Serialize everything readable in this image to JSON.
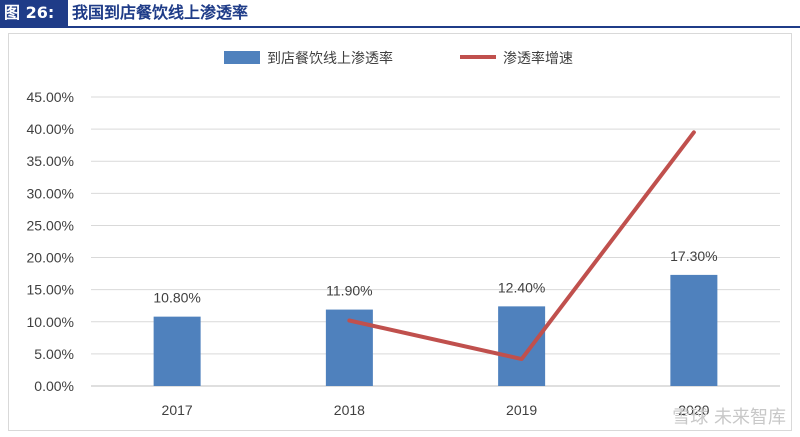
{
  "header": {
    "figure_label": "图 26:",
    "title": "我国到店餐饮线上渗透率"
  },
  "watermark": "雪球  未来智库",
  "colors": {
    "bar": "#4f81bd",
    "line": "#c0504d",
    "header": "#1f3c88",
    "grid": "#d9d9d9"
  },
  "chart_data": {
    "type": "bar",
    "categories": [
      "2017",
      "2018",
      "2019",
      "2020"
    ],
    "series": [
      {
        "name": "到店餐饮线上渗透率",
        "type": "bar",
        "values": [
          10.8,
          11.9,
          12.4,
          17.3
        ],
        "labels": [
          "10.80%",
          "11.90%",
          "12.40%",
          "17.30%"
        ]
      },
      {
        "name": "渗透率增速",
        "type": "line",
        "values": [
          null,
          10.2,
          4.2,
          39.5
        ]
      }
    ],
    "ylim": [
      0,
      45
    ],
    "yticks": [
      "0.00%",
      "5.00%",
      "10.00%",
      "15.00%",
      "20.00%",
      "25.00%",
      "30.00%",
      "35.00%",
      "40.00%",
      "45.00%"
    ],
    "grid": true,
    "legend": "top-center"
  }
}
